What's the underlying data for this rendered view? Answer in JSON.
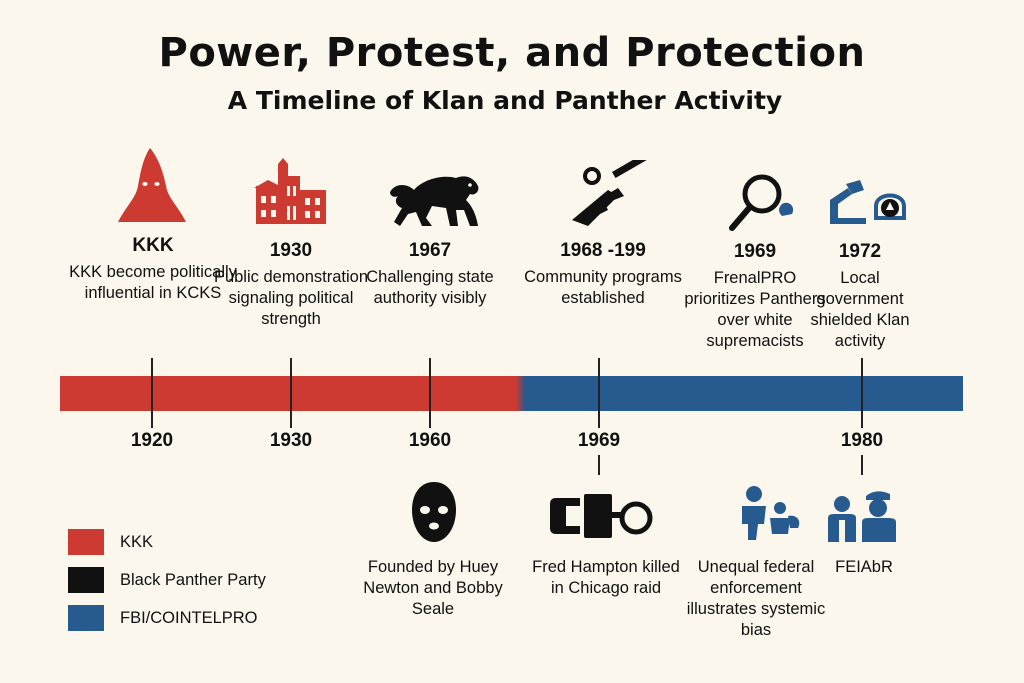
{
  "header": {
    "title": "Power, Protest, and Protection",
    "subtitle": "A Timeline of Klan and Panther Activity"
  },
  "colors": {
    "klan_red": "#cd3a31",
    "panther_black": "#111111",
    "fbi_blue": "#275a8f",
    "background": "#fbf7ec"
  },
  "events_above": [
    {
      "year": "KKK",
      "text": "KKK become politically influential in KCKS",
      "icon": "hood-icon"
    },
    {
      "year": "1930",
      "text": "Public demonstration signaling political strength",
      "icon": "courthouse-icon"
    },
    {
      "year": "1967",
      "text": "Challenging state authority visibly",
      "icon": "panther-icon"
    },
    {
      "year": "1968 -199",
      "text": "Community programs established",
      "icon": "rifle-icon"
    },
    {
      "year": "1969",
      "text": "FrenalPRO prioritizes Panthers over white supremacists",
      "icon": "magnifier-icon"
    },
    {
      "year": "1972",
      "text": "Local government shielded Klan activity",
      "icon": "shield-hand-icon"
    }
  ],
  "axis_labels": [
    "1920",
    "1930",
    "1960",
    "1969",
    "1980"
  ],
  "events_below": [
    {
      "text": "Founded by Huey Newton  and Bobby Seale",
      "icon": "balaclava-icon"
    },
    {
      "text": "Fred Hampton killed in Chicago raid",
      "icon": "handcuffs-icon"
    },
    {
      "text": "Unequal federal enforcement illustrates systemic bias",
      "icon": "figures-icon"
    },
    {
      "text": "FEIAbR",
      "icon": "agents-icon"
    }
  ],
  "legend": [
    {
      "label": "KKK",
      "color": "#cd3a31"
    },
    {
      "label": "Black Panther Party",
      "color": "#111111"
    },
    {
      "label": "FBI/COINTELPRO",
      "color": "#275a8f"
    }
  ]
}
